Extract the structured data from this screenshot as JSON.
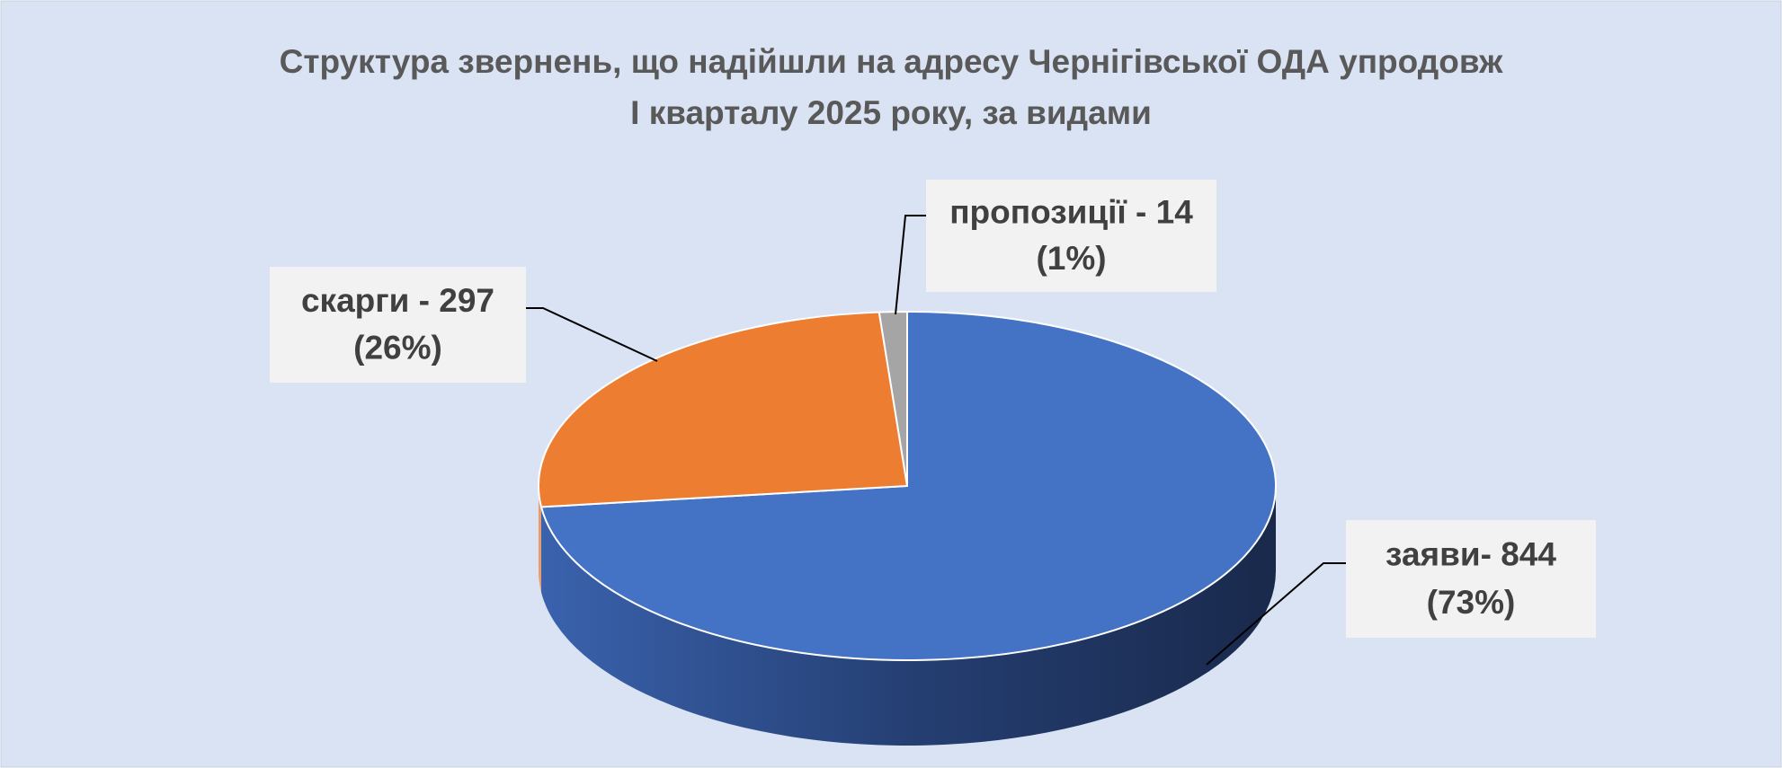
{
  "chart_data": {
    "type": "pie3d",
    "title": [
      "Структура звернень, що надійшли на адресу Чернігівської  ОДА упродовж",
      "I кварталу 2025 року, за видами"
    ],
    "values": [
      844,
      297,
      14
    ],
    "value_labels": [
      "заяви- 844",
      "скарги - 297",
      "пропозиції - 14"
    ],
    "percent_labels": [
      "(73%)",
      "(26%)",
      "(1%)"
    ],
    "colors": [
      "#4472c4",
      "#ed7d31",
      "#a5a5a5"
    ]
  }
}
